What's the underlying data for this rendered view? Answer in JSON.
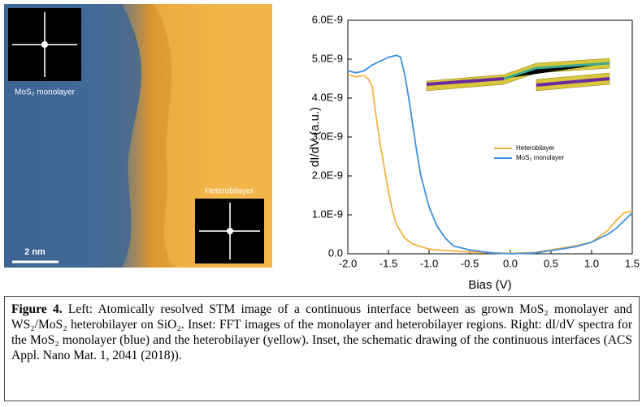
{
  "image": {
    "label_top": "MoS₂ monolayer",
    "label_bottom": "Heterobilayer",
    "scale_bar": "2 nm"
  },
  "chart_data": {
    "type": "line",
    "xlabel": "Bias (V)",
    "ylabel": "dI/dV (a.u.)",
    "xlim": [
      -2.0,
      1.5
    ],
    "ylim": [
      0,
      6e-09
    ],
    "xticks": [
      {
        "value": -2.0,
        "label": "-2.0"
      },
      {
        "value": -1.5,
        "label": "-1.5"
      },
      {
        "value": -1.0,
        "label": "-1.0"
      },
      {
        "value": -0.5,
        "label": "-0.5"
      },
      {
        "value": 0,
        "label": "0.0"
      },
      {
        "value": 0.5,
        "label": "0.5"
      },
      {
        "value": 1.0,
        "label": "1.0"
      },
      {
        "value": 1.5,
        "label": "1.5"
      }
    ],
    "yticks": [
      {
        "value": 0,
        "label": "0.0"
      },
      {
        "value": 1e-09,
        "label": "1.0E-9"
      },
      {
        "value": 2e-09,
        "label": "2.0E-9"
      },
      {
        "value": 3e-09,
        "label": "3.0E-9"
      },
      {
        "value": 4e-09,
        "label": "4.0E-9"
      },
      {
        "value": 5e-09,
        "label": "5.0E-9"
      },
      {
        "value": 6e-09,
        "label": "6.0E-9"
      }
    ],
    "series": [
      {
        "name": "Heterobilayer",
        "color": "#f5b041",
        "x": [
          -2.0,
          -1.9,
          -1.8,
          -1.75,
          -1.7,
          -1.65,
          -1.6,
          -1.55,
          -1.5,
          -1.45,
          -1.4,
          -1.3,
          -1.2,
          -1.0,
          -0.8,
          -0.5,
          -0.2,
          0,
          0.3,
          0.5,
          0.8,
          1.0,
          1.2,
          1.3,
          1.4,
          1.5
        ],
        "values": [
          4.6e-09,
          4.55e-09,
          4.58e-09,
          4.5e-09,
          4.3e-09,
          3.5e-09,
          2.8e-09,
          2.2e-09,
          1.6e-09,
          1.1e-09,
          7.5e-10,
          4e-10,
          2.5e-10,
          1.2e-10,
          8e-11,
          5e-11,
          2e-11,
          1e-11,
          3e-11,
          1e-10,
          2e-10,
          3e-10,
          6e-10,
          8.5e-10,
          1.05e-09,
          1.1e-09
        ]
      },
      {
        "name": "MoS₂ monolayer",
        "color": "#3d8fe0",
        "x": [
          -2.0,
          -1.9,
          -1.8,
          -1.7,
          -1.6,
          -1.5,
          -1.4,
          -1.35,
          -1.3,
          -1.25,
          -1.2,
          -1.15,
          -1.1,
          -1.05,
          -1.0,
          -0.9,
          -0.8,
          -0.7,
          -0.5,
          -0.3,
          -0.2,
          0,
          0.3,
          0.5,
          0.8,
          1.0,
          1.2,
          1.3,
          1.4,
          1.5
        ],
        "values": [
          4.7e-09,
          4.65e-09,
          4.7e-09,
          4.85e-09,
          4.95e-09,
          5.05e-09,
          5.1e-09,
          5.05e-09,
          4.6e-09,
          4e-09,
          3.3e-09,
          2.6e-09,
          2e-09,
          1.6e-09,
          1.2e-09,
          7e-10,
          4e-10,
          2e-10,
          1e-10,
          4e-11,
          2e-11,
          0,
          2e-11,
          8e-11,
          1.8e-10,
          3e-10,
          5e-10,
          6.5e-10,
          8.5e-10,
          1.05e-09
        ]
      }
    ]
  },
  "caption": {
    "label": "Figure 4.",
    "text": "Left: Atomically resolved STM image of a continuous interface between as grown MoS₂ monolayer and WS₂/MoS₂ heterobilayer on SiO₂. Inset: FFT images of the monolayer and heterobilayer regions. Right: dI/dV spectra for the MoS₂ monolayer (blue) and the heterobilayer (yellow). Inset, the schematic drawing of the continuous interfaces (ACS Appl. Nano Mat. 1, 2041 (2018))."
  }
}
